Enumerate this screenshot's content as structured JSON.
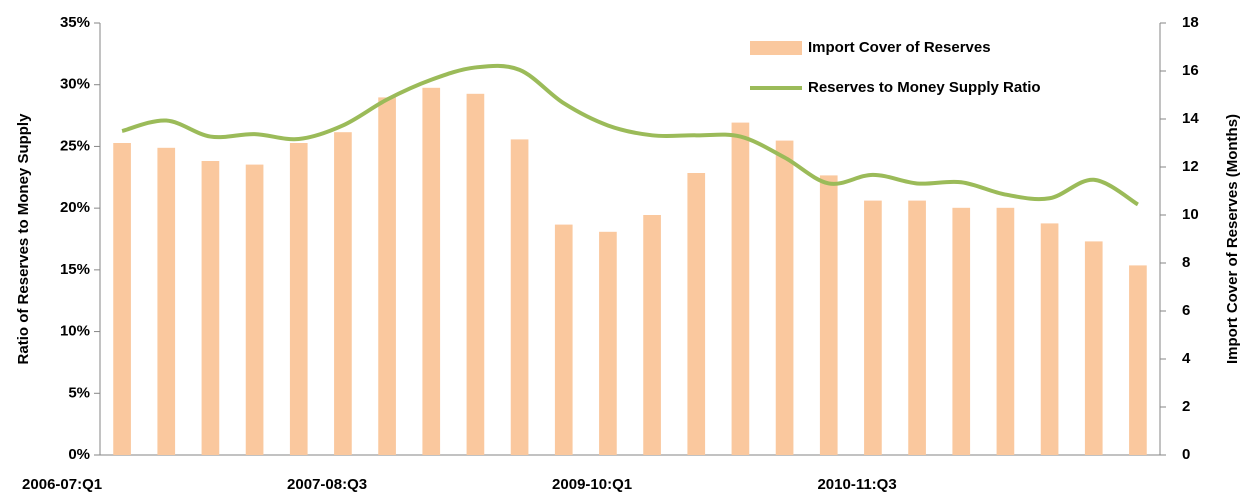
{
  "chart_data": {
    "type": "bar-line",
    "categories": [
      "2006-07:Q1",
      null,
      null,
      null,
      null,
      null,
      "2007-08:Q3",
      null,
      null,
      null,
      null,
      null,
      "2009-10:Q1",
      null,
      null,
      null,
      null,
      null,
      "2010-11:Q3",
      null,
      null,
      null,
      null,
      null
    ],
    "series": [
      {
        "name": "Import Cover of Reserves",
        "type": "bar",
        "axis": "y2",
        "color": "#fac89e",
        "values": [
          13.0,
          12.8,
          12.25,
          12.1,
          13.0,
          13.45,
          14.9,
          15.3,
          15.05,
          13.15,
          9.6,
          9.3,
          10.0,
          11.75,
          13.85,
          13.1,
          11.65,
          10.6,
          10.6,
          10.3,
          10.3,
          9.65,
          8.9,
          7.9
        ]
      },
      {
        "name": "Reserves to Money Supply Ratio",
        "type": "line",
        "axis": "y",
        "color": "#9bbb59",
        "values": [
          26.25,
          27.1,
          25.8,
          26.0,
          25.6,
          26.7,
          28.8,
          30.4,
          31.4,
          31.2,
          28.5,
          26.7,
          25.9,
          25.9,
          25.8,
          24.1,
          22.0,
          22.7,
          22.0,
          22.1,
          21.1,
          20.8,
          22.3,
          20.3
        ]
      }
    ],
    "y_label": "Ratio of Reserves to Money Supply",
    "y2_label": "Import Cover of Reserves (Months)",
    "ylim": [
      0,
      35
    ],
    "yticks": [
      {
        "value": 0,
        "label": "0%"
      },
      {
        "value": 5,
        "label": "5%"
      },
      {
        "value": 10,
        "label": "10%"
      },
      {
        "value": 15,
        "label": "15%"
      },
      {
        "value": 20,
        "label": "20%"
      },
      {
        "value": 25,
        "label": "25%"
      },
      {
        "value": 30,
        "label": "30%"
      },
      {
        "value": 35,
        "label": "35%"
      }
    ],
    "y2lim": [
      0,
      18
    ],
    "y2ticks": [
      0,
      2,
      4,
      6,
      8,
      10,
      12,
      14,
      16,
      18
    ],
    "legend": "top-right"
  }
}
